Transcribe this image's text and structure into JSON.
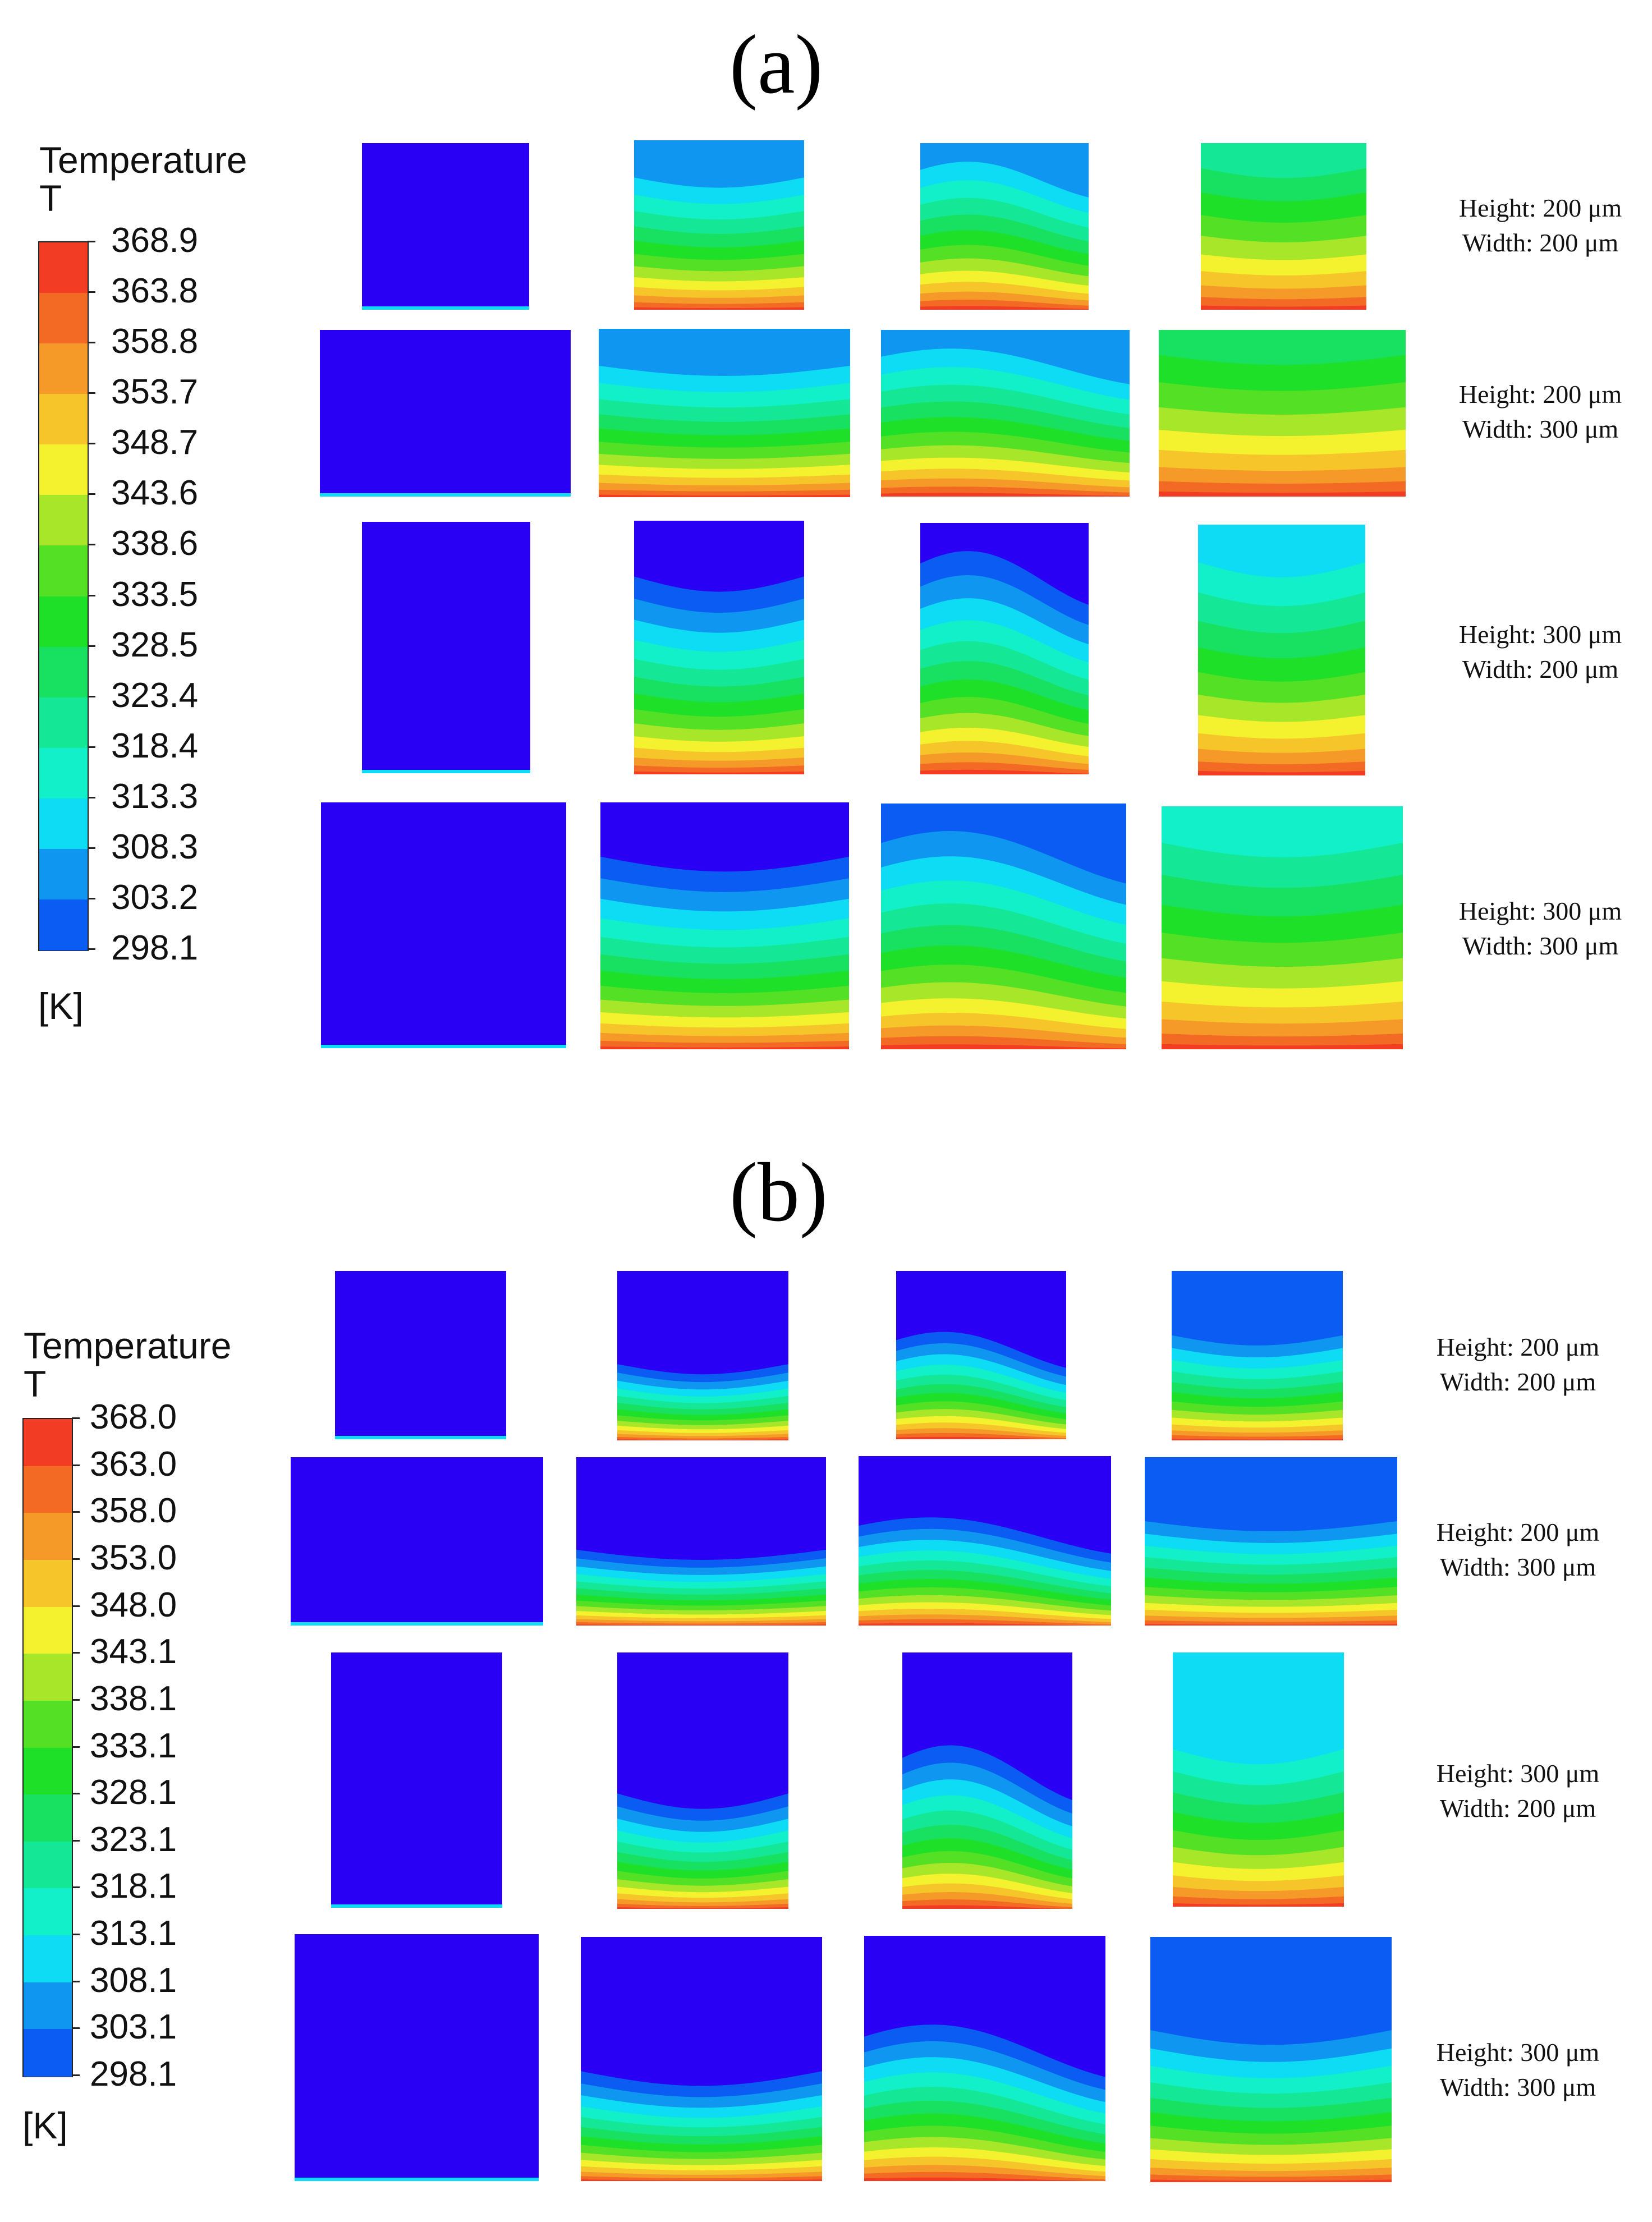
{
  "panels": [
    {
      "label": "(a)",
      "legend": {
        "title": "Temperature",
        "subtitle": "T",
        "unit": "[K]",
        "ticks": [
          "368.9",
          "363.8",
          "358.8",
          "353.7",
          "348.7",
          "343.6",
          "338.6",
          "333.5",
          "328.5",
          "323.4",
          "318.4",
          "313.3",
          "308.3",
          "303.2",
          "298.1"
        ]
      },
      "rows": [
        {
          "height": "Height: 200 μm",
          "width": "Width: 200 μm"
        },
        {
          "height": "Height: 200 μm",
          "width": "Width: 300 μm"
        },
        {
          "height": "Height: 300 μm",
          "width": "Width: 200 μm"
        },
        {
          "height": "Height: 300 μm",
          "width": "Width: 300 μm"
        }
      ]
    },
    {
      "label": "(b)",
      "legend": {
        "title": "Temperature",
        "subtitle": "T",
        "unit": "[K]",
        "ticks": [
          "368.0",
          "363.0",
          "358.0",
          "353.0",
          "348.0",
          "343.1",
          "338.1",
          "333.1",
          "328.1",
          "323.1",
          "318.1",
          "313.1",
          "308.1",
          "303.1",
          "298.1"
        ]
      },
      "rows": [
        {
          "height": "Height: 200 μm",
          "width": "Width: 200 μm"
        },
        {
          "height": "Height: 200 μm",
          "width": "Width: 300 μm"
        },
        {
          "height": "Height: 300 μm",
          "width": "Width: 200 μm"
        },
        {
          "height": "Height: 300 μm",
          "width": "Width: 300 μm"
        }
      ]
    }
  ],
  "colormap": [
    "#2a00f5",
    "#0a5cf2",
    "#0f96f0",
    "#0edcf5",
    "#11f0c8",
    "#14e896",
    "#18e060",
    "#1fe028",
    "#53e025",
    "#a8e62a",
    "#f4f22e",
    "#f5c52a",
    "#f59a28",
    "#f26a24",
    "#f23c24"
  ]
}
